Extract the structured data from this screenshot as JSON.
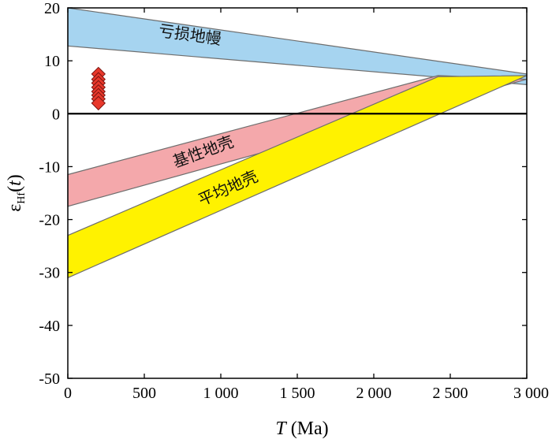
{
  "chart_data": {
    "type": "area",
    "xlabel": "T (Ma)",
    "ylabel": "εHf(t)",
    "xlim": [
      0,
      3000
    ],
    "ylim": [
      -50,
      20
    ],
    "x_ticks": [
      0,
      500,
      1000,
      1500,
      2000,
      2500,
      3000
    ],
    "x_tick_labels": [
      "0",
      "500",
      "1 000",
      "1 500",
      "2 000",
      "2 500",
      "3 000"
    ],
    "y_ticks": [
      20,
      10,
      0,
      -10,
      -20,
      -30,
      -40,
      -50
    ],
    "y_tick_labels": [
      "20",
      "10",
      "0",
      "-10",
      "-20",
      "-30",
      "-40",
      "-50"
    ],
    "reference_line": {
      "y": 0
    },
    "bands": [
      {
        "name": "亏损地幔",
        "color": "#a6d4f0",
        "polygon": [
          [
            0,
            20
          ],
          [
            3000,
            7.5
          ],
          [
            3000,
            5.5
          ],
          [
            0,
            12.8
          ]
        ]
      },
      {
        "name": "基性地壳",
        "color": "#f4a8ab",
        "polygon": [
          [
            0,
            -11.5
          ],
          [
            2420,
            7.2
          ],
          [
            3000,
            6.5
          ],
          [
            0,
            -17.5
          ]
        ]
      },
      {
        "name": "平均地壳",
        "color": "#fff200",
        "polygon": [
          [
            0,
            -23
          ],
          [
            2420,
            7
          ],
          [
            3000,
            7.2
          ],
          [
            0,
            -31
          ]
        ]
      }
    ],
    "scatter": {
      "marker": "diamond",
      "color": "#e8382b",
      "points": [
        [
          200,
          7.5
        ],
        [
          200,
          6.5
        ],
        [
          200,
          5.8
        ],
        [
          200,
          5.0
        ],
        [
          200,
          4.2
        ],
        [
          200,
          3.5
        ],
        [
          200,
          2.8
        ],
        [
          200,
          2.0
        ]
      ]
    }
  }
}
